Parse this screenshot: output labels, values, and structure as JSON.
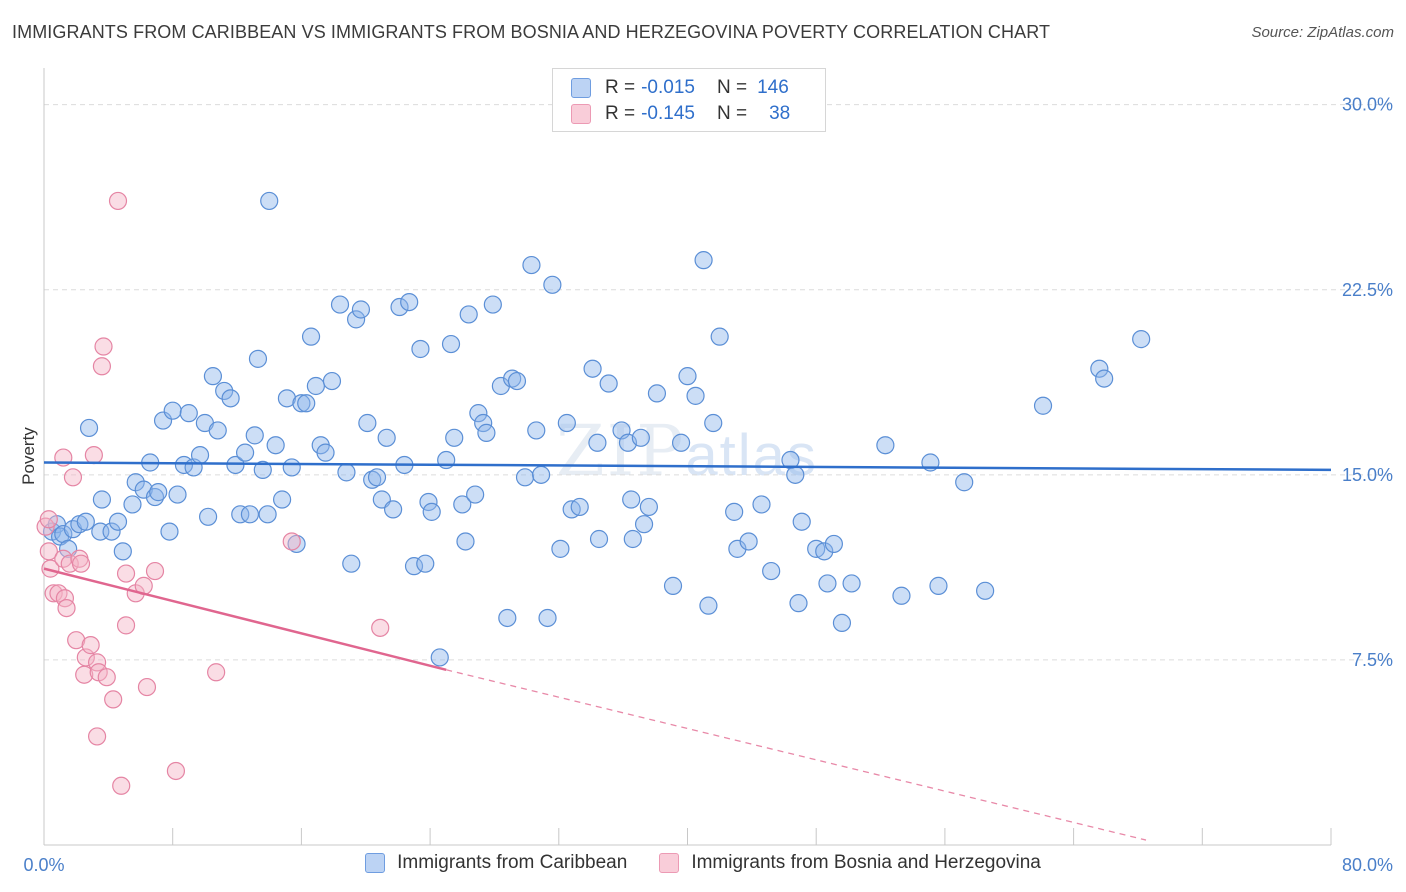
{
  "title": "IMMIGRANTS FROM CARIBBEAN VS IMMIGRANTS FROM BOSNIA AND HERZEGOVINA POVERTY CORRELATION CHART",
  "source": "Source: ZipAtlas.com",
  "watermark": {
    "zip": "ZIP",
    "atlas": "atlas"
  },
  "legend_top": {
    "rows": [
      {
        "r_label": "R =",
        "r_value": "-0.015",
        "n_label": "N =",
        "n_value": "146"
      },
      {
        "r_label": "R =",
        "r_value": "-0.145",
        "n_label": "N =",
        "n_value": "38"
      }
    ]
  },
  "chart_data": {
    "type": "scatter",
    "title": "IMMIGRANTS FROM CARIBBEAN VS IMMIGRANTS FROM BOSNIA AND HERZEGOVINA POVERTY CORRELATION CHART",
    "xlabel": "",
    "ylabel": "Poverty",
    "xlim": [
      0,
      80
    ],
    "ylim": [
      0,
      31
    ],
    "x_tick_labels": [
      "0.0%",
      "80.0%"
    ],
    "y_ticks": [
      7.5,
      15.0,
      22.5,
      30.0
    ],
    "y_tick_labels": [
      "7.5%",
      "15.0%",
      "22.5%",
      "30.0%"
    ],
    "grid": "horizontal dashed",
    "legend": "bottom-center",
    "series": [
      {
        "name": "Immigrants from Caribbean",
        "color": "#8fb6ec",
        "stroke": "#5b8fd6",
        "trend": {
          "x": [
            0,
            80
          ],
          "y": [
            15.5,
            15.2
          ]
        },
        "points": [
          [
            0.5,
            12.7
          ],
          [
            0.8,
            13.0
          ],
          [
            1.0,
            12.5
          ],
          [
            1.2,
            12.6
          ],
          [
            1.5,
            12.0
          ],
          [
            1.8,
            12.8
          ],
          [
            2.2,
            13.0
          ],
          [
            2.6,
            13.1
          ],
          [
            2.8,
            16.9
          ],
          [
            3.5,
            12.7
          ],
          [
            3.6,
            14.0
          ],
          [
            4.2,
            12.7
          ],
          [
            4.6,
            13.1
          ],
          [
            4.9,
            11.9
          ],
          [
            5.5,
            13.8
          ],
          [
            5.7,
            14.7
          ],
          [
            6.2,
            14.4
          ],
          [
            6.6,
            15.5
          ],
          [
            6.9,
            14.1
          ],
          [
            7.1,
            14.3
          ],
          [
            7.4,
            17.2
          ],
          [
            7.8,
            12.7
          ],
          [
            8.0,
            17.6
          ],
          [
            8.3,
            14.2
          ],
          [
            8.7,
            15.4
          ],
          [
            9.0,
            17.5
          ],
          [
            9.3,
            15.3
          ],
          [
            9.7,
            15.8
          ],
          [
            10.0,
            17.1
          ],
          [
            10.2,
            13.3
          ],
          [
            10.5,
            19.0
          ],
          [
            10.8,
            16.8
          ],
          [
            11.2,
            18.4
          ],
          [
            11.6,
            18.1
          ],
          [
            11.9,
            15.4
          ],
          [
            12.2,
            13.4
          ],
          [
            12.5,
            15.9
          ],
          [
            12.8,
            13.4
          ],
          [
            13.1,
            16.6
          ],
          [
            13.3,
            19.7
          ],
          [
            13.6,
            15.2
          ],
          [
            13.9,
            13.4
          ],
          [
            14.0,
            26.1
          ],
          [
            14.4,
            16.2
          ],
          [
            14.8,
            14.0
          ],
          [
            15.1,
            18.1
          ],
          [
            15.4,
            15.3
          ],
          [
            15.7,
            12.2
          ],
          [
            16.0,
            17.9
          ],
          [
            16.3,
            17.9
          ],
          [
            16.6,
            20.6
          ],
          [
            16.9,
            18.6
          ],
          [
            17.2,
            16.2
          ],
          [
            17.5,
            15.9
          ],
          [
            17.9,
            18.8
          ],
          [
            18.4,
            21.9
          ],
          [
            18.8,
            15.1
          ],
          [
            19.1,
            11.4
          ],
          [
            19.4,
            21.3
          ],
          [
            19.7,
            21.7
          ],
          [
            20.1,
            17.1
          ],
          [
            20.4,
            14.8
          ],
          [
            20.7,
            14.9
          ],
          [
            21.0,
            14.0
          ],
          [
            21.3,
            16.5
          ],
          [
            21.7,
            13.6
          ],
          [
            22.1,
            21.8
          ],
          [
            22.4,
            15.4
          ],
          [
            22.7,
            22.0
          ],
          [
            23.0,
            11.3
          ],
          [
            23.4,
            20.1
          ],
          [
            23.7,
            11.4
          ],
          [
            23.9,
            13.9
          ],
          [
            24.1,
            13.5
          ],
          [
            24.6,
            7.6
          ],
          [
            25.0,
            15.6
          ],
          [
            25.3,
            20.3
          ],
          [
            25.5,
            16.5
          ],
          [
            26.0,
            13.8
          ],
          [
            26.2,
            12.3
          ],
          [
            26.4,
            21.5
          ],
          [
            26.8,
            14.2
          ],
          [
            27.0,
            17.5
          ],
          [
            27.3,
            17.1
          ],
          [
            27.5,
            16.7
          ],
          [
            27.9,
            21.9
          ],
          [
            28.4,
            18.6
          ],
          [
            28.8,
            9.2
          ],
          [
            29.1,
            18.9
          ],
          [
            29.4,
            18.8
          ],
          [
            29.9,
            14.9
          ],
          [
            30.3,
            23.5
          ],
          [
            30.6,
            16.8
          ],
          [
            30.9,
            15.0
          ],
          [
            31.3,
            9.2
          ],
          [
            31.6,
            22.7
          ],
          [
            32.1,
            12.0
          ],
          [
            32.5,
            17.1
          ],
          [
            32.8,
            13.6
          ],
          [
            33.3,
            13.7
          ],
          [
            34.1,
            19.3
          ],
          [
            34.4,
            16.3
          ],
          [
            34.5,
            12.4
          ],
          [
            35.1,
            18.7
          ],
          [
            35.9,
            16.8
          ],
          [
            36.3,
            16.3
          ],
          [
            36.5,
            14.0
          ],
          [
            36.6,
            12.4
          ],
          [
            37.1,
            16.5
          ],
          [
            37.3,
            13.0
          ],
          [
            37.6,
            13.7
          ],
          [
            38.1,
            18.3
          ],
          [
            39.1,
            10.5
          ],
          [
            39.6,
            16.3
          ],
          [
            40.0,
            19.0
          ],
          [
            40.5,
            18.2
          ],
          [
            41.0,
            23.7
          ],
          [
            41.3,
            9.7
          ],
          [
            41.6,
            17.1
          ],
          [
            42.0,
            20.6
          ],
          [
            42.9,
            13.5
          ],
          [
            43.1,
            12.0
          ],
          [
            43.8,
            12.3
          ],
          [
            44.6,
            13.8
          ],
          [
            45.2,
            11.1
          ],
          [
            46.4,
            15.6
          ],
          [
            46.7,
            15.0
          ],
          [
            46.9,
            9.8
          ],
          [
            47.1,
            13.1
          ],
          [
            48.0,
            12.0
          ],
          [
            48.5,
            11.9
          ],
          [
            48.7,
            10.6
          ],
          [
            49.1,
            12.2
          ],
          [
            49.6,
            9.0
          ],
          [
            50.2,
            10.6
          ],
          [
            52.3,
            16.2
          ],
          [
            53.3,
            10.1
          ],
          [
            55.1,
            15.5
          ],
          [
            55.6,
            10.5
          ],
          [
            57.2,
            14.7
          ],
          [
            58.5,
            10.3
          ],
          [
            62.1,
            17.8
          ],
          [
            65.6,
            19.3
          ],
          [
            65.9,
            18.9
          ],
          [
            68.2,
            20.5
          ]
        ]
      },
      {
        "name": "Immigrants from Bosnia and Herzegovina",
        "color": "#f4b3c6",
        "stroke": "#e585a4",
        "trend": {
          "x": [
            0,
            25
          ],
          "y": [
            11.2,
            7.1
          ],
          "dashed_to": {
            "x": 68.5,
            "y": 0.2
          }
        },
        "points": [
          [
            0.1,
            12.9
          ],
          [
            0.3,
            11.9
          ],
          [
            0.4,
            11.2
          ],
          [
            0.6,
            10.2
          ],
          [
            0.9,
            10.2
          ],
          [
            1.2,
            11.6
          ],
          [
            1.3,
            10.0
          ],
          [
            1.4,
            9.6
          ],
          [
            1.2,
            15.7
          ],
          [
            1.6,
            11.4
          ],
          [
            1.8,
            14.9
          ],
          [
            2.0,
            8.3
          ],
          [
            2.2,
            11.6
          ],
          [
            2.3,
            11.4
          ],
          [
            2.5,
            6.9
          ],
          [
            2.6,
            7.6
          ],
          [
            2.9,
            8.1
          ],
          [
            3.1,
            15.8
          ],
          [
            3.3,
            7.4
          ],
          [
            3.4,
            7.0
          ],
          [
            3.6,
            19.4
          ],
          [
            3.7,
            20.2
          ],
          [
            3.9,
            6.8
          ],
          [
            4.3,
            5.9
          ],
          [
            4.6,
            26.1
          ],
          [
            5.1,
            11.0
          ],
          [
            5.1,
            8.9
          ],
          [
            3.3,
            4.4
          ],
          [
            4.8,
            2.4
          ],
          [
            5.7,
            10.2
          ],
          [
            6.2,
            10.5
          ],
          [
            6.4,
            6.4
          ],
          [
            6.9,
            11.1
          ],
          [
            8.2,
            3.0
          ],
          [
            10.7,
            7.0
          ],
          [
            15.4,
            12.3
          ],
          [
            20.9,
            8.8
          ],
          [
            0.3,
            13.2
          ]
        ]
      }
    ]
  },
  "legend_bottom": [
    {
      "label": "Immigrants from Caribbean"
    },
    {
      "label": "Immigrants from Bosnia and Herzegovina"
    }
  ]
}
